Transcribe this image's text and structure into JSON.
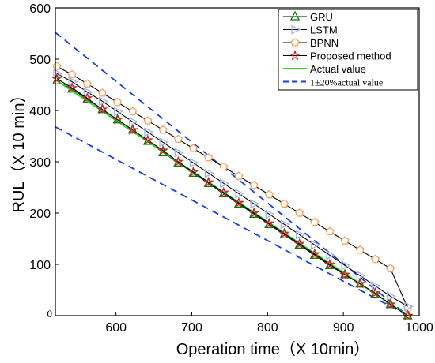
{
  "chart_data": {
    "type": "line",
    "xlabel": "Operation time（X 10min）",
    "ylabel": "RUL（X 10 min）",
    "xlim": [
      520,
      1000
    ],
    "ylim": [
      0,
      600
    ],
    "xticks": [
      600,
      700,
      800,
      900,
      1000
    ],
    "yticks": [
      100,
      200,
      300,
      400,
      500,
      600
    ],
    "y_zero_label": "0",
    "grid": false,
    "legend_position": "top-right",
    "series": [
      {
        "name": "GRU",
        "color": "#008000",
        "marker": "triangle-up",
        "x": [
          522,
          542,
          562,
          582,
          602,
          622,
          642,
          662,
          682,
          702,
          722,
          742,
          762,
          782,
          802,
          822,
          842,
          862,
          882,
          902,
          922,
          942,
          962,
          985
        ],
        "y": [
          458,
          442,
          422,
          402,
          382,
          362,
          340,
          318,
          298,
          278,
          258,
          238,
          218,
          198,
          178,
          158,
          138,
          118,
          98,
          80,
          62,
          42,
          22,
          0
        ]
      },
      {
        "name": "LSTM",
        "color": "#9fb6e8",
        "marker": "triangle-right",
        "x": [
          522,
          542,
          562,
          582,
          602,
          622,
          642,
          662,
          682,
          702,
          722,
          742,
          762,
          782,
          802,
          822,
          842,
          862,
          882,
          902,
          922,
          942,
          962,
          985
        ],
        "y": [
          472,
          456,
          436,
          418,
          398,
          378,
          358,
          338,
          318,
          298,
          278,
          258,
          238,
          218,
          198,
          178,
          158,
          138,
          118,
          98,
          78,
          58,
          38,
          18
        ]
      },
      {
        "name": "BPNN",
        "color": "#f5a15b",
        "marker": "pentagon",
        "x": [
          522,
          542,
          562,
          582,
          602,
          622,
          642,
          662,
          682,
          702,
          722,
          742,
          762,
          782,
          802,
          822,
          842,
          862,
          882,
          902,
          922,
          942,
          962,
          985
        ],
        "y": [
          486,
          470,
          452,
          434,
          416,
          398,
          380,
          362,
          344,
          326,
          308,
          290,
          272,
          254,
          236,
          218,
          200,
          182,
          164,
          146,
          128,
          110,
          92,
          15
        ]
      },
      {
        "name": "Proposed method",
        "color": "#c62828",
        "marker": "star",
        "x": [
          522,
          542,
          562,
          582,
          602,
          622,
          642,
          662,
          682,
          702,
          722,
          742,
          762,
          782,
          802,
          822,
          842,
          862,
          882,
          902,
          922,
          942,
          962,
          985
        ],
        "y": [
          462,
          444,
          424,
          402,
          382,
          362,
          342,
          322,
          300,
          280,
          260,
          240,
          220,
          200,
          180,
          160,
          140,
          120,
          100,
          80,
          62,
          44,
          22,
          0
        ]
      },
      {
        "name": "Actual value",
        "color": "#22dd22",
        "marker": "none",
        "x": [
          520,
          985
        ],
        "y": [
          460,
          0
        ]
      },
      {
        "name": "1±20%actual value",
        "color": "#1a3ce6",
        "marker": "none",
        "dashed": true,
        "x": [
          520,
          985
        ],
        "y": [
          552,
          0
        ]
      },
      {
        "name": "",
        "color": "#1a3ce6",
        "marker": "none",
        "dashed": true,
        "x": [
          520,
          985
        ],
        "y": [
          368,
          0
        ]
      }
    ],
    "legend": [
      {
        "label": "GRU",
        "series": 0
      },
      {
        "label": "LSTM",
        "series": 1
      },
      {
        "label": "BPNN",
        "series": 2
      },
      {
        "label": "Proposed method",
        "series": 3
      },
      {
        "label": "Actual value",
        "series": 4
      },
      {
        "label": "1±20%actual value",
        "series": 5
      }
    ]
  }
}
